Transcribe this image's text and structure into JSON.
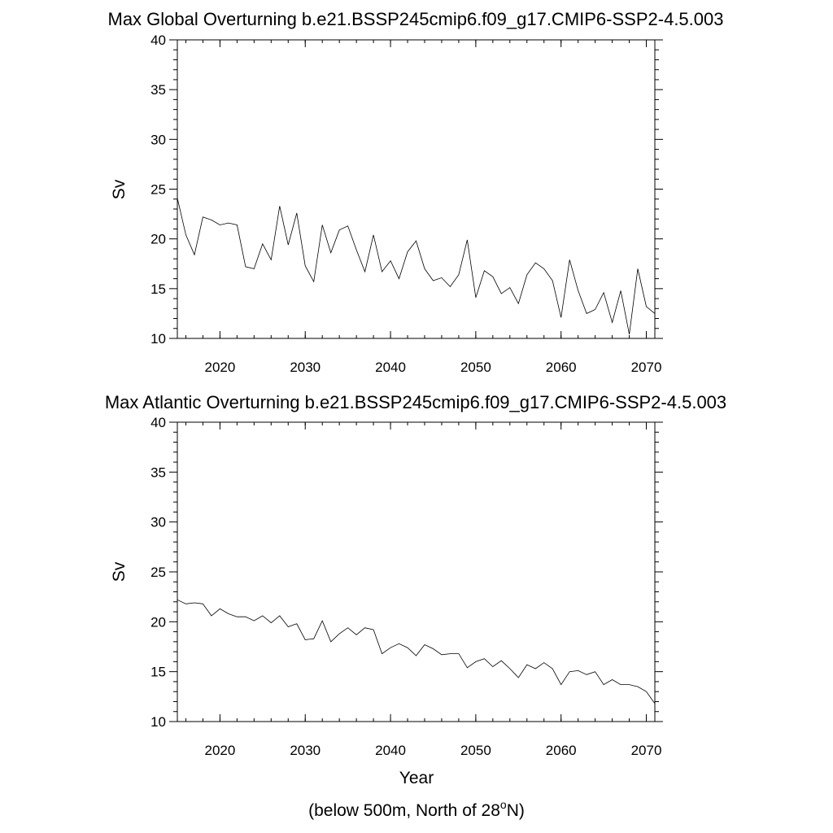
{
  "footnote": {
    "prefix": "(below 500m, North of 28",
    "superscript": "o",
    "suffix": "N)"
  },
  "chart_data": [
    {
      "type": "line",
      "title": "Max Global Overturning b.e21.BSSP245cmip6.f09_g17.CMIP6-SSP2-4.5.003",
      "xlabel": "",
      "ylabel": "Sv",
      "xlim": [
        2015,
        2071
      ],
      "ylim": [
        10,
        40
      ],
      "x_ticks": [
        2020,
        2030,
        2040,
        2050,
        2060,
        2070
      ],
      "y_ticks": [
        10,
        15,
        20,
        25,
        30,
        35,
        40
      ],
      "grid": false,
      "line_color": "#000000",
      "x": [
        2015,
        2016,
        2017,
        2018,
        2019,
        2020,
        2021,
        2022,
        2023,
        2024,
        2025,
        2026,
        2027,
        2028,
        2029,
        2030,
        2031,
        2032,
        2033,
        2034,
        2035,
        2036,
        2037,
        2038,
        2039,
        2040,
        2041,
        2042,
        2043,
        2044,
        2045,
        2046,
        2047,
        2048,
        2049,
        2050,
        2051,
        2052,
        2053,
        2054,
        2055,
        2056,
        2057,
        2058,
        2059,
        2060,
        2061,
        2062,
        2063,
        2064,
        2065,
        2066,
        2067,
        2068,
        2069,
        2070,
        2071
      ],
      "y": [
        24.1,
        20.4,
        18.4,
        22.2,
        21.9,
        21.4,
        21.6,
        21.4,
        17.2,
        17.0,
        19.5,
        17.9,
        23.3,
        19.4,
        22.6,
        17.3,
        15.7,
        21.4,
        18.6,
        20.9,
        21.3,
        18.9,
        16.7,
        20.4,
        16.7,
        17.8,
        16.0,
        18.7,
        19.8,
        17.0,
        15.8,
        16.1,
        15.2,
        16.4,
        19.9,
        14.1,
        16.8,
        16.2,
        14.5,
        15.1,
        13.5,
        16.4,
        17.6,
        17.0,
        15.8,
        12.1,
        17.9,
        14.8,
        12.5,
        12.9,
        14.6,
        11.6,
        14.8,
        10.4,
        17.0,
        13.2,
        12.5
      ]
    },
    {
      "type": "line",
      "title": "Max Atlantic Overturning b.e21.BSSP245cmip6.f09_g17.CMIP6-SSP2-4.5.003",
      "xlabel": "Year",
      "ylabel": "Sv",
      "xlim": [
        2015,
        2071
      ],
      "ylim": [
        10,
        40
      ],
      "x_ticks": [
        2020,
        2030,
        2040,
        2050,
        2060,
        2070
      ],
      "y_ticks": [
        10,
        15,
        20,
        25,
        30,
        35,
        40
      ],
      "grid": false,
      "line_color": "#000000",
      "x": [
        2015,
        2016,
        2017,
        2018,
        2019,
        2020,
        2021,
        2022,
        2023,
        2024,
        2025,
        2026,
        2027,
        2028,
        2029,
        2030,
        2031,
        2032,
        2033,
        2034,
        2035,
        2036,
        2037,
        2038,
        2039,
        2040,
        2041,
        2042,
        2043,
        2044,
        2045,
        2046,
        2047,
        2048,
        2049,
        2050,
        2051,
        2052,
        2053,
        2054,
        2055,
        2056,
        2057,
        2058,
        2059,
        2060,
        2061,
        2062,
        2063,
        2064,
        2065,
        2066,
        2067,
        2068,
        2069,
        2070,
        2071
      ],
      "y": [
        22.2,
        21.8,
        21.9,
        21.8,
        20.6,
        21.3,
        20.8,
        20.5,
        20.5,
        20.1,
        20.6,
        19.9,
        20.6,
        19.5,
        19.8,
        18.2,
        18.3,
        20.1,
        18.0,
        18.8,
        19.4,
        18.7,
        19.4,
        19.2,
        16.8,
        17.4,
        17.8,
        17.4,
        16.6,
        17.7,
        17.3,
        16.7,
        16.8,
        16.8,
        15.4,
        16.0,
        16.3,
        15.5,
        16.1,
        15.3,
        14.4,
        15.7,
        15.3,
        15.9,
        15.3,
        13.7,
        15.0,
        15.1,
        14.7,
        15.0,
        13.7,
        14.2,
        13.7,
        13.7,
        13.5,
        13.0,
        11.8
      ]
    }
  ]
}
